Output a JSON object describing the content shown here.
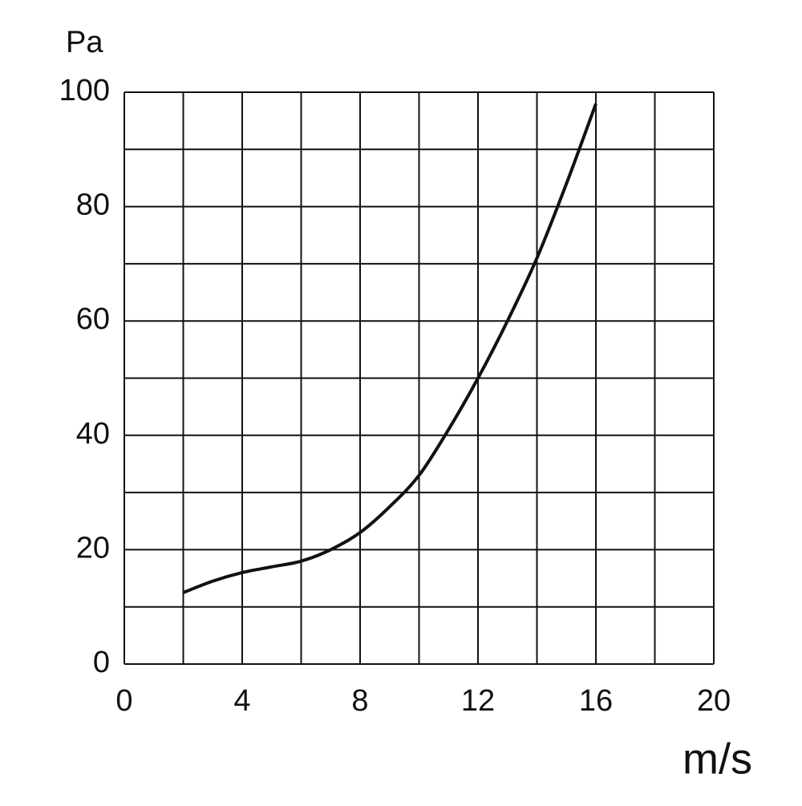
{
  "chart_data": {
    "type": "line",
    "y_label": "Pa",
    "x_label": "m/s",
    "x": [
      2,
      3,
      4,
      5,
      6,
      7,
      8,
      9,
      10,
      11,
      12,
      13,
      14,
      15,
      16
    ],
    "series": [
      {
        "color": "#111111",
        "values": [
          12.5,
          14.5,
          16,
          17,
          18,
          20,
          23,
          27.5,
          33,
          41,
          50,
          60,
          71,
          84,
          98
        ]
      }
    ],
    "xlim": [
      0,
      20
    ],
    "xticks": [
      0,
      4,
      8,
      12,
      16,
      20
    ],
    "xminor": [
      2,
      6,
      10,
      14,
      18
    ],
    "ylim": [
      0,
      100
    ],
    "yticks": [
      0,
      20,
      40,
      60,
      80,
      100
    ],
    "yminor": [
      10,
      30,
      50,
      70,
      90
    ],
    "grid": true
  }
}
